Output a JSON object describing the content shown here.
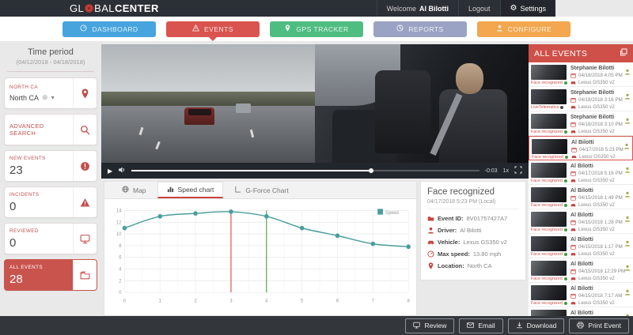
{
  "header": {
    "logo_part1": "GL",
    "logo_part2": "BAL",
    "logo_part3": "CENTER",
    "welcome_prefix": "Welcome",
    "user_name": "Al Bilotti",
    "logout_label": "Logout",
    "settings_label": "Settings"
  },
  "nav": {
    "items": [
      {
        "label": "DASHBOARD",
        "color": "#47a4dd",
        "active": false
      },
      {
        "label": "EVENTS",
        "color": "#d9534f",
        "active": true
      },
      {
        "label": "GPS TRACKER",
        "color": "#4fbd82",
        "active": false
      },
      {
        "label": "REPORTS",
        "color": "#9aa3c4",
        "active": false
      },
      {
        "label": "CONFIGURE",
        "color": "#f3a74e",
        "active": false
      }
    ]
  },
  "sidebar": {
    "time_period_title": "Time period",
    "time_period_range": "(04/12/2018 - 04/18/2018)",
    "location_card": {
      "label": "NORTH CA",
      "selected": "North CA"
    },
    "advanced_search_label": "ADVANCED SEARCH",
    "counters": [
      {
        "label": "NEW EVENTS",
        "value": "23",
        "active": false
      },
      {
        "label": "INCIDENTS",
        "value": "0",
        "active": false
      },
      {
        "label": "REVIEWED",
        "value": "0",
        "active": false
      },
      {
        "label": "ALL EVENTS",
        "value": "28",
        "active": true
      }
    ]
  },
  "player": {
    "time_remaining": "-0:03",
    "playback_rate": "1x",
    "progress_percent": 69
  },
  "tabs": [
    {
      "label": "Map",
      "active": false
    },
    {
      "label": "Speed chart",
      "active": true
    },
    {
      "label": "G-Force Chart",
      "active": false
    }
  ],
  "detail_panel": {
    "title": "Face recognized",
    "timestamp": "04/17/2018 5:23 PM (Local)",
    "fields": [
      {
        "label": "Event ID",
        "value": "8V01757427A7"
      },
      {
        "label": "Driver",
        "value": "Al Bilotti"
      },
      {
        "label": "Vehicle",
        "value": "Lexus GS350 v2"
      },
      {
        "label": "Max speed",
        "value": "13.80 mph"
      },
      {
        "label": "Location",
        "value": "North CA"
      }
    ]
  },
  "events_panel": {
    "title": "ALL EVENTS",
    "items": [
      {
        "name": "Stephanie Bilotti",
        "datetime": "04/18/2018 4:05 PM",
        "vehicle": "Lexus GS350 v2",
        "tag": "Face recognized",
        "tag_status": "green",
        "selected": false
      },
      {
        "name": "Stephanie Bilotti",
        "datetime": "04/18/2018 3:16 PM",
        "vehicle": "Lexus GS350 v2",
        "tag": "LiveTelematics",
        "tag_status": "dark",
        "selected": false
      },
      {
        "name": "Stephanie Bilotti",
        "datetime": "04/18/2018 3:10 PM",
        "vehicle": "Lexus GS350 v2",
        "tag": "Face recognized",
        "tag_status": "green",
        "selected": false
      },
      {
        "name": "Al Bilotti",
        "datetime": "04/17/2018 5:23 PM",
        "vehicle": "Lexus GS350 v2",
        "tag": "Face recognized",
        "tag_status": "green",
        "selected": true
      },
      {
        "name": "Al Bilotti",
        "datetime": "04/17/2018 5:16 PM",
        "vehicle": "Lexus GS350 v2",
        "tag": "Face recognized",
        "tag_status": "green",
        "selected": false
      },
      {
        "name": "Al Bilotti",
        "datetime": "04/15/2018 1:49 PM",
        "vehicle": "Lexus GS350 v2",
        "tag": "Face recognized",
        "tag_status": "green",
        "selected": false
      },
      {
        "name": "Al Bilotti",
        "datetime": "04/15/2018 1:28 PM",
        "vehicle": "Lexus GS350 v2",
        "tag": "Face recognized",
        "tag_status": "green",
        "selected": false
      },
      {
        "name": "Al Bilotti",
        "datetime": "04/15/2018 1:17 PM",
        "vehicle": "Lexus GS350 v2",
        "tag": "Face recognized",
        "tag_status": "green",
        "selected": false
      },
      {
        "name": "Al Bilotti",
        "datetime": "04/15/2018 12:29 PM",
        "vehicle": "Lexus GS350 v2",
        "tag": "Face recognized",
        "tag_status": "green",
        "selected": false
      },
      {
        "name": "Al Bilotti",
        "datetime": "04/15/2018 7:17 AM",
        "vehicle": "Lexus GS350 v2",
        "tag": "Face recognized",
        "tag_status": "green",
        "selected": false
      },
      {
        "name": "Al Bilotti",
        "datetime": "",
        "vehicle": "",
        "tag": "",
        "tag_status": "green",
        "selected": false
      }
    ]
  },
  "footer": {
    "buttons": [
      {
        "label": "Review"
      },
      {
        "label": "Email"
      },
      {
        "label": "Download"
      },
      {
        "label": "Print Event"
      }
    ]
  },
  "colors": {
    "accent_red": "#d9534f",
    "panel_header_red": "#cf5049",
    "chart_line_teal": "#4a9d9d",
    "marker_red": "#d9534f",
    "marker_green": "#4ca54c"
  },
  "chart_data": {
    "type": "line",
    "title": "",
    "xlabel": "",
    "ylabel": "",
    "x": [
      0,
      1,
      2,
      3,
      4,
      5,
      6,
      7,
      8
    ],
    "series": [
      {
        "name": "Speed",
        "values": [
          11,
          13,
          13.5,
          13.8,
          13,
          11,
          9.7,
          8.3,
          7.8
        ]
      }
    ],
    "ylim": [
      0,
      14
    ],
    "yticks": [
      0,
      2,
      4,
      6,
      8,
      10,
      12,
      14
    ],
    "grid": true,
    "legend_position": "top-right",
    "line_color": "#4a9d9d",
    "annotations": [
      {
        "type": "vline",
        "x": 3,
        "color": "#d9534f"
      },
      {
        "type": "vline",
        "x": 4,
        "color": "#4ca54c"
      }
    ]
  }
}
